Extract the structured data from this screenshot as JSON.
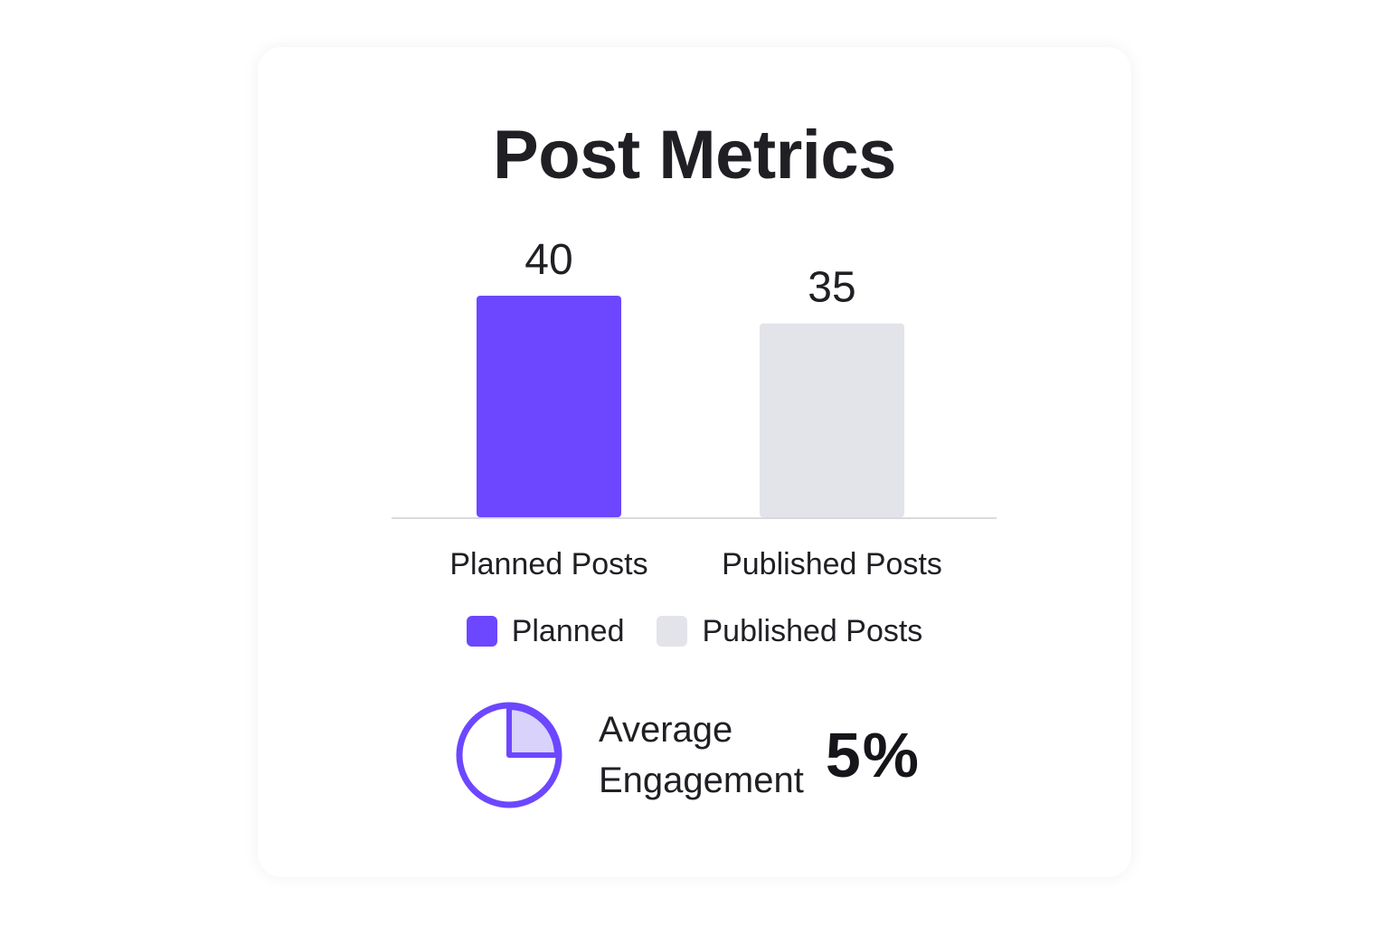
{
  "colors": {
    "planned": "#6c47ff",
    "published": "#e3e3ea",
    "axis": "#d9d9df",
    "icon_stroke": "#6c47ff",
    "icon_fill": "#d9d2fb"
  },
  "chart_data": {
    "type": "bar",
    "title": "Post Metrics",
    "categories": [
      "Planned Posts",
      "Published Posts"
    ],
    "values": [
      40,
      35
    ],
    "data_labels": [
      "40",
      "35"
    ],
    "bar_colors": [
      "#6c47ff",
      "#e3e3ea"
    ],
    "ylim": [
      0,
      40
    ],
    "grid": false,
    "legend": {
      "placement": "bottom",
      "entries": [
        {
          "label": "Planned",
          "color": "#6c47ff"
        },
        {
          "label": "Published Posts",
          "color": "#e3e3ea"
        }
      ]
    }
  },
  "metric": {
    "icon": "pie-chart-icon",
    "label_line1": "Average",
    "label_line2": "Engagement",
    "value": "5%",
    "fraction": 0.25
  }
}
